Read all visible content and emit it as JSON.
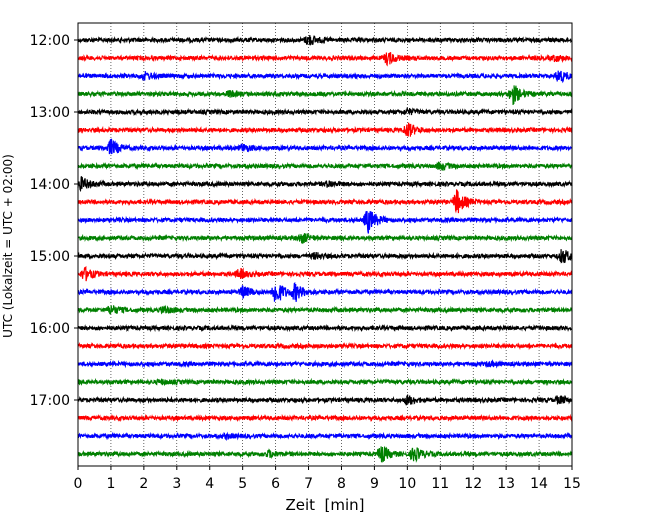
{
  "chart_data": {
    "type": "line",
    "title": "",
    "xlabel": "Zeit  [min]",
    "ylabel": "UTC (Lokalzeit = UTC + 02:00)",
    "xlim": [
      0,
      15
    ],
    "x_ticks": [
      "0",
      "1",
      "2",
      "3",
      "4",
      "5",
      "6",
      "7",
      "8",
      "9",
      "10",
      "11",
      "12",
      "13",
      "14",
      "15"
    ],
    "y_tick_labels": [
      "12:00",
      "13:00",
      "14:00",
      "15:00",
      "16:00",
      "17:00"
    ],
    "traces_per_hour": 4,
    "trace_start": "12:00",
    "trace_minutes": 15,
    "grid": "vertical dotted at each minute",
    "legend": "none",
    "colors": [
      "#000000",
      "#ff0000",
      "#0000ff",
      "#008000"
    ],
    "traces": [
      {
        "start": "12:00",
        "color": "#000000",
        "events": [
          {
            "t": 7.0,
            "amp": 0.6
          }
        ]
      },
      {
        "start": "12:15",
        "color": "#ff0000",
        "events": [
          {
            "t": 9.4,
            "amp": 0.7
          },
          {
            "t": 14.5,
            "amp": 0.3
          }
        ]
      },
      {
        "start": "12:30",
        "color": "#0000ff",
        "events": [
          {
            "t": 2.0,
            "amp": 0.4
          },
          {
            "t": 14.6,
            "amp": 0.7
          }
        ]
      },
      {
        "start": "12:45",
        "color": "#008000",
        "events": [
          {
            "t": 13.2,
            "amp": 1.1
          },
          {
            "t": 4.6,
            "amp": 0.3
          }
        ]
      },
      {
        "start": "13:00",
        "color": "#000000",
        "events": [
          {
            "t": 10.0,
            "amp": 0.3
          }
        ]
      },
      {
        "start": "13:15",
        "color": "#ff0000",
        "events": [
          {
            "t": 10.0,
            "amp": 0.8
          }
        ]
      },
      {
        "start": "13:30",
        "color": "#0000ff",
        "events": [
          {
            "t": 1.0,
            "amp": 0.9
          },
          {
            "t": 5.0,
            "amp": 0.4
          }
        ]
      },
      {
        "start": "13:45",
        "color": "#008000",
        "events": [
          {
            "t": 11.0,
            "amp": 0.4
          }
        ]
      },
      {
        "start": "14:00",
        "color": "#000000",
        "events": [
          {
            "t": 0.1,
            "amp": 0.7
          },
          {
            "t": 7.6,
            "amp": 0.3
          }
        ]
      },
      {
        "start": "14:15",
        "color": "#ff0000",
        "events": [
          {
            "t": 11.5,
            "amp": 1.3
          }
        ]
      },
      {
        "start": "14:30",
        "color": "#0000ff",
        "events": [
          {
            "t": 8.8,
            "amp": 1.4
          }
        ]
      },
      {
        "start": "14:45",
        "color": "#008000",
        "events": [
          {
            "t": 6.8,
            "amp": 0.5
          }
        ]
      },
      {
        "start": "15:00",
        "color": "#000000",
        "events": [
          {
            "t": 14.7,
            "amp": 0.8
          },
          {
            "t": 7.2,
            "amp": 0.3
          }
        ]
      },
      {
        "start": "15:15",
        "color": "#ff0000",
        "events": [
          {
            "t": 0.2,
            "amp": 0.7
          },
          {
            "t": 4.9,
            "amp": 0.5
          }
        ]
      },
      {
        "start": "15:30",
        "color": "#0000ff",
        "events": [
          {
            "t": 5.0,
            "amp": 0.6
          },
          {
            "t": 6.0,
            "amp": 1.4
          },
          {
            "t": 6.6,
            "amp": 0.9
          }
        ]
      },
      {
        "start": "15:45",
        "color": "#008000",
        "events": [
          {
            "t": 1.0,
            "amp": 0.5
          },
          {
            "t": 2.6,
            "amp": 0.4
          }
        ]
      },
      {
        "start": "16:00",
        "color": "#000000",
        "events": []
      },
      {
        "start": "16:15",
        "color": "#ff0000",
        "events": []
      },
      {
        "start": "16:30",
        "color": "#0000ff",
        "events": [
          {
            "t": 12.5,
            "amp": 0.2
          }
        ]
      },
      {
        "start": "16:45",
        "color": "#008000",
        "events": [
          {
            "t": 2.5,
            "amp": 0.2
          }
        ]
      },
      {
        "start": "17:00",
        "color": "#000000",
        "events": [
          {
            "t": 10.0,
            "amp": 0.5
          },
          {
            "t": 14.6,
            "amp": 0.4
          }
        ]
      },
      {
        "start": "17:15",
        "color": "#ff0000",
        "events": []
      },
      {
        "start": "17:30",
        "color": "#0000ff",
        "events": [
          {
            "t": 4.5,
            "amp": 0.2
          }
        ]
      },
      {
        "start": "17:45",
        "color": "#008000",
        "events": [
          {
            "t": 9.2,
            "amp": 0.9
          },
          {
            "t": 10.2,
            "amp": 0.8
          },
          {
            "t": 5.8,
            "amp": 0.3
          }
        ]
      }
    ]
  }
}
